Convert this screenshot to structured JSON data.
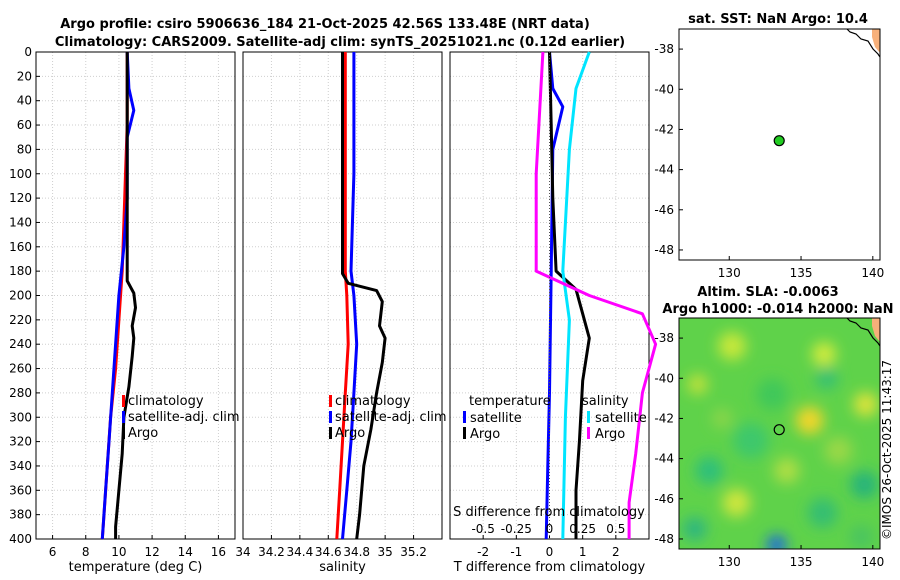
{
  "title_line1": "Argo profile: csiro 5906636_184 21-Oct-2025 42.56S 133.48E (NRT data)",
  "title_line2": "Climatology: CARS2009. Satellite-adj clim: synTS_20251021.nc (0.12d earlier)",
  "timestamp": "©IMOS 26-Oct-2025 11:43:17",
  "colors": {
    "climatology": "#ff0000",
    "satellite": "#0000ff",
    "argo": "#000000",
    "sal_satellite": "#00e5ff",
    "sal_argo": "#ff00ff"
  },
  "chart_data": [
    {
      "type": "line",
      "id": "temperature",
      "xlabel": "temperature (deg C)",
      "ylabel": "",
      "xlim": [
        5,
        17
      ],
      "ylim": [
        400,
        0
      ],
      "xticks": [
        6,
        8,
        10,
        12,
        14,
        16
      ],
      "yticks": [
        0,
        20,
        40,
        60,
        80,
        100,
        120,
        140,
        160,
        180,
        200,
        220,
        240,
        260,
        280,
        300,
        320,
        340,
        360,
        380,
        400
      ],
      "grid": true,
      "legend": {
        "position": "middle-right",
        "labels": [
          "climatology",
          "satellite-adj. clim",
          "Argo"
        ]
      },
      "series": [
        {
          "name": "climatology",
          "color_key": "climatology",
          "points": [
            [
              10.5,
              0
            ],
            [
              10.5,
              60
            ],
            [
              10.4,
              100
            ],
            [
              10.3,
              140
            ],
            [
              10.2,
              180
            ],
            [
              10.0,
              220
            ],
            [
              9.8,
              260
            ],
            [
              9.5,
              300
            ],
            [
              9.3,
              340
            ],
            [
              9.1,
              380
            ],
            [
              9.0,
              400
            ]
          ]
        },
        {
          "name": "satellite-adj. clim",
          "color_key": "satellite",
          "points": [
            [
              10.5,
              0
            ],
            [
              10.6,
              30
            ],
            [
              10.9,
              48
            ],
            [
              10.5,
              70
            ],
            [
              10.5,
              120
            ],
            [
              10.3,
              160
            ],
            [
              10.0,
              200
            ],
            [
              9.8,
              240
            ],
            [
              9.6,
              280
            ],
            [
              9.4,
              320
            ],
            [
              9.2,
              360
            ],
            [
              9.0,
              400
            ]
          ]
        },
        {
          "name": "Argo",
          "color_key": "argo",
          "points": [
            [
              10.5,
              0
            ],
            [
              10.5,
              188
            ],
            [
              10.9,
              198
            ],
            [
              11.0,
              210
            ],
            [
              10.8,
              225
            ],
            [
              10.9,
              235
            ],
            [
              10.8,
              250
            ],
            [
              10.6,
              275
            ],
            [
              10.3,
              300
            ],
            [
              10.2,
              330
            ],
            [
              10.0,
              360
            ],
            [
              9.8,
              390
            ],
            [
              9.8,
              400
            ]
          ]
        }
      ]
    },
    {
      "type": "line",
      "id": "salinity",
      "xlabel": "salinity",
      "ylabel": "",
      "xlim": [
        34.0,
        35.4
      ],
      "ylim": [
        400,
        0
      ],
      "xticks": [
        34,
        34.2,
        34.4,
        34.6,
        34.8,
        35,
        35.2
      ],
      "xticklabels": [
        "34",
        "34.2",
        "34.4",
        "34.6",
        "34.8",
        "35",
        "35.2"
      ],
      "grid": true,
      "legend": {
        "position": "middle-right",
        "labels": [
          "climatology",
          "satellite-adj. clim",
          "Argo"
        ]
      },
      "series": [
        {
          "name": "climatology",
          "color_key": "climatology",
          "points": [
            [
              34.72,
              0
            ],
            [
              34.72,
              180
            ],
            [
              34.73,
              200
            ],
            [
              34.74,
              240
            ],
            [
              34.72,
              280
            ],
            [
              34.7,
              320
            ],
            [
              34.68,
              360
            ],
            [
              34.66,
              400
            ]
          ]
        },
        {
          "name": "satellite-adj. clim",
          "color_key": "satellite",
          "points": [
            [
              34.78,
              0
            ],
            [
              34.78,
              100
            ],
            [
              34.76,
              180
            ],
            [
              34.78,
              200
            ],
            [
              34.8,
              240
            ],
            [
              34.78,
              280
            ],
            [
              34.76,
              320
            ],
            [
              34.73,
              360
            ],
            [
              34.7,
              400
            ]
          ]
        },
        {
          "name": "Argo",
          "color_key": "argo",
          "points": [
            [
              34.7,
              0
            ],
            [
              34.7,
              182
            ],
            [
              34.74,
              190
            ],
            [
              34.94,
              196
            ],
            [
              34.98,
              205
            ],
            [
              34.96,
              225
            ],
            [
              35.0,
              235
            ],
            [
              34.98,
              255
            ],
            [
              34.94,
              280
            ],
            [
              34.9,
              310
            ],
            [
              34.85,
              340
            ],
            [
              34.82,
              380
            ],
            [
              34.8,
              400
            ]
          ]
        }
      ]
    },
    {
      "type": "line",
      "id": "differences",
      "xlabel": "T difference from climatology",
      "xlabel_top": "S difference from climatology",
      "xlim": [
        -3,
        3
      ],
      "ylim": [
        400,
        0
      ],
      "xticks": [
        -2,
        -1,
        0,
        1,
        2
      ],
      "xticklabels": [
        "-2",
        "-1",
        "0",
        "1",
        "2"
      ],
      "s_ticklabels": [
        "-0.5",
        "-0.25",
        "0",
        "0.25",
        "0.5"
      ],
      "grid": true,
      "legend_temperature": {
        "title": "temperature",
        "labels": [
          "satellite",
          "Argo"
        ]
      },
      "legend_salinity": {
        "title": "salinity",
        "labels": [
          "satellite",
          "Argo"
        ]
      },
      "series": [
        {
          "name": "T satellite",
          "color_key": "satellite",
          "points": [
            [
              0.0,
              0
            ],
            [
              0.1,
              30
            ],
            [
              0.4,
              45
            ],
            [
              0.1,
              80
            ],
            [
              0.05,
              180
            ],
            [
              0.0,
              280
            ],
            [
              -0.05,
              340
            ],
            [
              -0.1,
              400
            ]
          ]
        },
        {
          "name": "T Argo",
          "color_key": "argo",
          "points": [
            [
              0.0,
              0
            ],
            [
              0.05,
              60
            ],
            [
              0.1,
              120
            ],
            [
              0.2,
              180
            ],
            [
              0.8,
              195
            ],
            [
              1.0,
              215
            ],
            [
              1.2,
              235
            ],
            [
              1.0,
              270
            ],
            [
              0.9,
              320
            ],
            [
              0.8,
              360
            ],
            [
              0.8,
              400
            ]
          ]
        },
        {
          "name": "S satellite",
          "color_key": "sal_satellite",
          "points": [
            [
              0.3,
              0
            ],
            [
              0.2,
              30
            ],
            [
              0.15,
              80
            ],
            [
              0.1,
              180
            ],
            [
              0.15,
              220
            ],
            [
              0.12,
              300
            ],
            [
              0.1,
              400
            ]
          ]
        },
        {
          "name": "S Argo",
          "color_key": "sal_argo",
          "points": [
            [
              -0.05,
              0
            ],
            [
              -0.1,
              100
            ],
            [
              -0.1,
              180
            ],
            [
              0.3,
              200
            ],
            [
              0.7,
              215
            ],
            [
              0.8,
              240
            ],
            [
              0.7,
              280
            ],
            [
              0.65,
              330
            ],
            [
              0.6,
              370
            ],
            [
              0.6,
              400
            ]
          ]
        }
      ]
    },
    {
      "type": "scatter",
      "id": "sst_map",
      "title": "sat. SST: NaN Argo: 10.4",
      "xlim": [
        126.5,
        140.5
      ],
      "ylim": [
        -48.5,
        -37
      ],
      "xticks": [
        130,
        135,
        140
      ],
      "yticks": [
        -38,
        -40,
        -42,
        -44,
        -46,
        -48
      ],
      "points": [
        [
          133.48,
          -42.56
        ]
      ]
    },
    {
      "type": "heatmap",
      "id": "sla_map",
      "title_line1": "Altim. SLA: -0.0063",
      "title_line2": "Argo h1000: -0.014 h2000: NaN",
      "xlim": [
        126.5,
        140.5
      ],
      "ylim": [
        -48.5,
        -37
      ],
      "xticks": [
        130,
        135,
        140
      ],
      "yticks": [
        -38,
        -40,
        -42,
        -44,
        -46,
        -48
      ],
      "points": [
        [
          133.48,
          -42.56
        ]
      ]
    }
  ]
}
